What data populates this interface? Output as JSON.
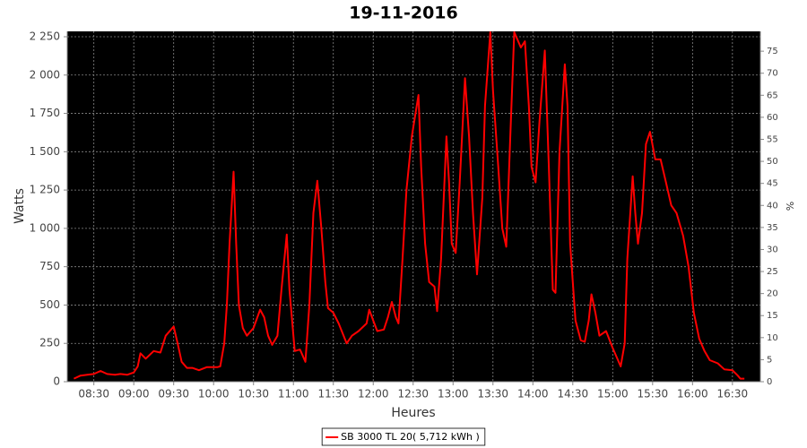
{
  "chart_data": {
    "type": "line",
    "title": "19-11-2016",
    "xlabel": "Heures",
    "ylabel": "Watts",
    "y2label": "%",
    "x": [
      "08:15",
      "08:20",
      "08:25",
      "08:30",
      "08:35",
      "08:40",
      "08:46",
      "08:50",
      "08:55",
      "09:00",
      "09:03",
      "09:05",
      "09:09",
      "09:15",
      "09:20",
      "09:24",
      "09:30",
      "09:33",
      "09:36",
      "09:40",
      "09:44",
      "09:49",
      "09:55",
      "10:00",
      "10:03",
      "10:05",
      "10:08",
      "10:10",
      "10:12",
      "10:15",
      "10:17",
      "10:19",
      "10:22",
      "10:25",
      "10:30",
      "10:35",
      "10:38",
      "10:41",
      "10:44",
      "10:48",
      "10:51",
      "10:55",
      "10:57",
      "11:01",
      "11:05",
      "11:09",
      "11:12",
      "11:15",
      "11:18",
      "11:21",
      "11:24",
      "11:26",
      "11:30",
      "11:34",
      "11:40",
      "11:44",
      "11:49",
      "11:55",
      "11:57",
      "12:00",
      "12:03",
      "12:08",
      "12:11",
      "12:14",
      "12:17",
      "12:19",
      "12:22",
      "12:25",
      "12:29",
      "12:34",
      "12:36",
      "12:39",
      "12:42",
      "12:46",
      "12:48",
      "12:51",
      "12:55",
      "12:57",
      "12:59",
      "13:02",
      "13:05",
      "13:09",
      "13:12",
      "13:15",
      "13:18",
      "13:22",
      "13:24",
      "13:28",
      "13:30",
      "13:34",
      "13:37",
      "13:40",
      "13:43",
      "13:46",
      "13:51",
      "13:54",
      "13:57",
      "13:59",
      "14:02",
      "14:05",
      "14:09",
      "14:12",
      "14:15",
      "14:17",
      "14:20",
      "14:24",
      "14:26",
      "14:28",
      "14:32",
      "14:36",
      "14:39",
      "14:42",
      "14:44",
      "14:47",
      "14:50",
      "14:55",
      "15:00",
      "15:06",
      "15:09",
      "15:11",
      "15:15",
      "15:17",
      "15:19",
      "15:22",
      "15:25",
      "15:28",
      "15:32",
      "15:36",
      "15:40",
      "15:44",
      "15:48",
      "15:53",
      "15:57",
      "16:01",
      "16:05",
      "16:09",
      "16:13",
      "16:19",
      "16:24",
      "16:30",
      "16:34",
      "16:36",
      "16:39"
    ],
    "series": [
      {
        "name": "SB 3000 TL 20( 5,712 kWh )",
        "color": "#ff0000",
        "values": [
          20,
          40,
          45,
          50,
          70,
          50,
          45,
          50,
          45,
          60,
          100,
          185,
          150,
          200,
          190,
          300,
          360,
          250,
          130,
          90,
          90,
          75,
          95,
          95,
          95,
          100,
          250,
          500,
          900,
          1370,
          900,
          500,
          350,
          300,
          350,
          470,
          420,
          300,
          240,
          300,
          600,
          960,
          600,
          200,
          210,
          130,
          500,
          1100,
          1310,
          1000,
          650,
          480,
          450,
          380,
          250,
          300,
          330,
          380,
          470,
          400,
          330,
          340,
          420,
          520,
          420,
          380,
          800,
          1250,
          1600,
          1870,
          1400,
          900,
          650,
          620,
          460,
          800,
          1600,
          1300,
          900,
          840,
          1300,
          1980,
          1600,
          1100,
          700,
          1200,
          1800,
          2280,
          1900,
          1400,
          1000,
          880,
          1600,
          2280,
          2180,
          2220,
          1800,
          1400,
          1300,
          1700,
          2160,
          1400,
          600,
          580,
          1500,
          2070,
          1800,
          900,
          400,
          270,
          260,
          400,
          570,
          450,
          300,
          330,
          220,
          100,
          250,
          800,
          1340,
          1100,
          900,
          1100,
          1550,
          1630,
          1450,
          1450,
          1300,
          1150,
          1100,
          950,
          750,
          450,
          280,
          200,
          140,
          120,
          80,
          75,
          40,
          20,
          20
        ]
      }
    ],
    "xlim": [
      "08:10",
      "16:51"
    ],
    "xticks": [
      "08:30",
      "09:00",
      "09:30",
      "10:00",
      "10:30",
      "11:00",
      "11:30",
      "12:00",
      "12:30",
      "13:00",
      "13:30",
      "14:00",
      "14:30",
      "15:00",
      "15:30",
      "16:00",
      "16:30"
    ],
    "ylim": [
      0,
      2285
    ],
    "yticks": [
      0,
      250,
      500,
      750,
      {
        "value": 1000,
        "label": "1 000"
      },
      {
        "value": 1250,
        "label": "1 250"
      },
      {
        "value": 1500,
        "label": "1 500"
      },
      {
        "value": 1750,
        "label": "1 750"
      },
      {
        "value": 2000,
        "label": "2 000"
      },
      {
        "value": 2250,
        "label": "2 250"
      }
    ],
    "y2lim": [
      0,
      79.5
    ],
    "y2ticks": [
      0,
      5,
      10,
      15,
      20,
      25,
      30,
      35,
      40,
      45,
      50,
      55,
      60,
      65,
      70,
      75
    ],
    "grid": true,
    "background": "#000000",
    "legend": "bottom"
  }
}
